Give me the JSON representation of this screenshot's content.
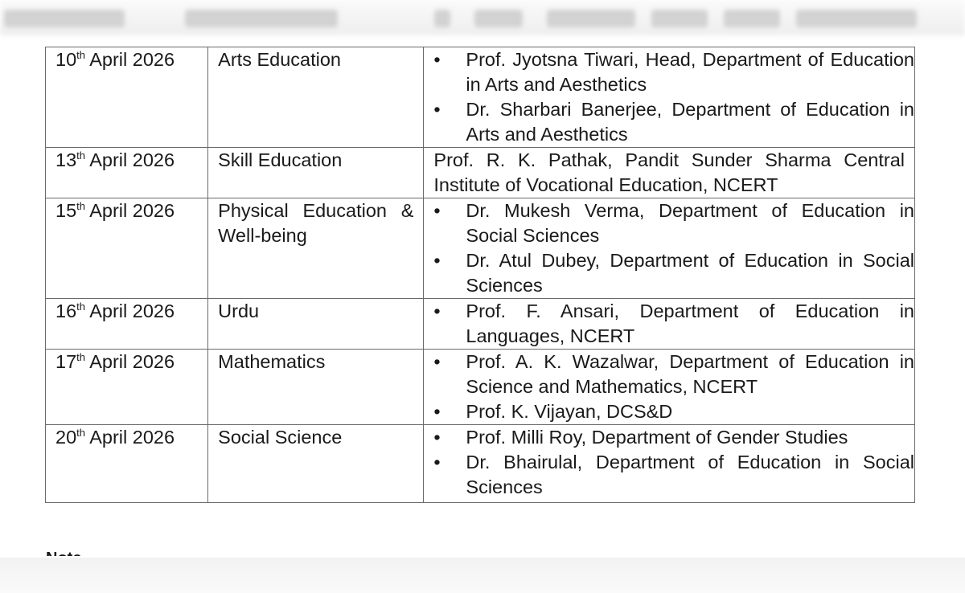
{
  "rows": [
    {
      "day": "10",
      "suffix": "th",
      "month_year": "April 2026",
      "subject": "Arts Education",
      "resource_persons": [
        "Prof. Jyotsna Tiwari, Head, Department of Education in Arts and Aesthetics",
        "Dr. Sharbari Banerjee, Department of Education in Arts and Aesthetics"
      ]
    },
    {
      "day": "13",
      "suffix": "th",
      "month_year": "April 2026",
      "subject": "Skill Education",
      "resource_text": "Prof. R. K. Pathak, Pandit Sunder Sharma Central Institute of Vocational Education, NCERT"
    },
    {
      "day": "15",
      "suffix": "th",
      "month_year": "April 2026",
      "subject": "Physical Education & Well-being",
      "resource_persons": [
        "Dr. Mukesh Verma, Department of Education in Social Sciences",
        "Dr. Atul Dubey, Department of Education in Social Sciences"
      ]
    },
    {
      "day": "16",
      "suffix": "th",
      "month_year": "April 2026",
      "subject": "Urdu",
      "resource_persons": [
        "Prof. F. Ansari, Department of Education in Languages, NCERT"
      ]
    },
    {
      "day": "17",
      "suffix": "th",
      "month_year": "April 2026",
      "subject": "Mathematics",
      "resource_persons": [
        "Prof. A. K. Wazalwar, Department of Education in Science and Mathematics, NCERT",
        "Prof. K. Vijayan, DCS&D"
      ]
    },
    {
      "day": "20",
      "suffix": "th",
      "month_year": "April 2026",
      "subject": "Social Science",
      "resource_persons": [
        "Prof. Milli Roy, Department of Gender Studies",
        "Dr. Bhairulal, Department of Education in Social Sciences"
      ]
    }
  ],
  "note_heading": "Note"
}
